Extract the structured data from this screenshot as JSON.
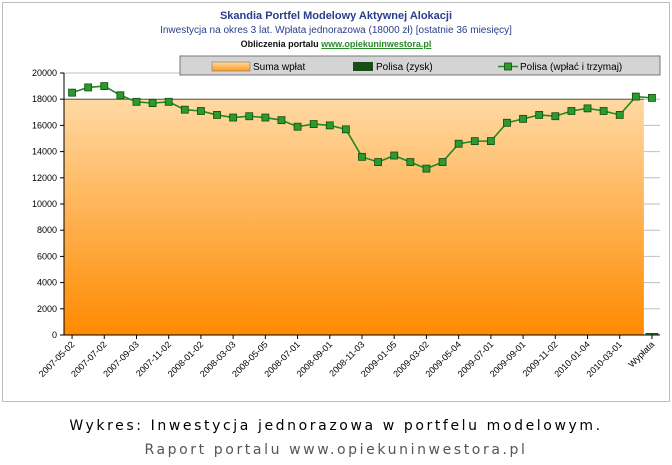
{
  "header": {
    "title": "Skandia Portfel Modelowy Aktywnej Alokacji",
    "subtitle": "Inwestycja na okres 3 lat. Wpłata jednorazowa (18000 zł) [ostatnie 36 miesięcy]",
    "credit_prefix": "Obliczenia portalu",
    "credit_link": "www.opiekuninwestora.pl"
  },
  "footer": {
    "caption": "Wykres: Inwestycja jednorazowa w portfelu modelowym.",
    "source": "Raport portalu www.opiekuninwestora.pl"
  },
  "colors": {
    "line": "#1f8a1f",
    "marker": "#2e9a2e",
    "area_top": "#ffd9a3",
    "area_bottom": "#ff8a00",
    "zysk_bar": "#1a4d1a",
    "legend_bg": "#d4d4d4"
  },
  "chart_data": {
    "type": "line",
    "title": "Skandia Portfel Modelowy Aktywnej Alokacji",
    "ylim": [
      0,
      20000
    ],
    "yticks": [
      0,
      2000,
      4000,
      6000,
      8000,
      10000,
      12000,
      14000,
      16000,
      18000,
      20000
    ],
    "grid": true,
    "legend_placement": "top",
    "legend": [
      "Suma wpłat",
      "Polisa (zysk)",
      "Polisa (wpłać i trzymaj)"
    ],
    "categories": [
      "2007-05-02",
      "2007-06-01",
      "2007-07-02",
      "2007-08-01",
      "2007-09-03",
      "2007-10-01",
      "2007-11-02",
      "2007-12-03",
      "2008-01-02",
      "2008-02-01",
      "2008-03-03",
      "2008-04-01",
      "2008-05-05",
      "2008-06-02",
      "2008-07-01",
      "2008-08-01",
      "2008-09-01",
      "2008-10-01",
      "2008-11-03",
      "2008-12-01",
      "2009-01-05",
      "2009-02-02",
      "2009-03-02",
      "2009-04-01",
      "2009-05-04",
      "2009-06-01",
      "2009-07-01",
      "2009-08-03",
      "2009-09-01",
      "2009-10-01",
      "2009-11-02",
      "2009-12-01",
      "2010-01-04",
      "2010-02-01",
      "2010-03-01",
      "2010-04-01",
      "Wypłata"
    ],
    "tick_labels": [
      "2007-05-02",
      "2007-07-02",
      "2007-09-03",
      "2007-11-02",
      "2008-01-02",
      "2008-03-03",
      "2008-05-05",
      "2008-07-01",
      "2008-09-01",
      "2008-11-03",
      "2009-01-05",
      "2009-03-02",
      "2009-05-04",
      "2009-07-01",
      "2009-09-01",
      "2009-11-02",
      "2010-01-04",
      "2010-03-01",
      "Wypłata"
    ],
    "series": [
      {
        "name": "Suma wpłat",
        "type": "area",
        "values": [
          18000,
          18000,
          18000,
          18000,
          18000,
          18000,
          18000,
          18000,
          18000,
          18000,
          18000,
          18000,
          18000,
          18000,
          18000,
          18000,
          18000,
          18000,
          18000,
          18000,
          18000,
          18000,
          18000,
          18000,
          18000,
          18000,
          18000,
          18000,
          18000,
          18000,
          18000,
          18000,
          18000,
          18000,
          18000,
          18000,
          null
        ]
      },
      {
        "name": "Polisa (zysk)",
        "type": "bar",
        "values": [
          null,
          null,
          null,
          null,
          null,
          null,
          null,
          null,
          null,
          null,
          null,
          null,
          null,
          null,
          null,
          null,
          null,
          null,
          null,
          null,
          null,
          null,
          null,
          null,
          null,
          null,
          null,
          null,
          null,
          null,
          null,
          null,
          null,
          null,
          null,
          null,
          100
        ]
      },
      {
        "name": "Polisa (wpłać i trzymaj)",
        "type": "line",
        "values": [
          18500,
          18900,
          19000,
          18300,
          17800,
          17700,
          17800,
          17200,
          17100,
          16800,
          16600,
          16700,
          16600,
          16400,
          15900,
          16100,
          16000,
          15700,
          13600,
          13200,
          13700,
          13200,
          12700,
          13200,
          14600,
          14800,
          14800,
          16200,
          16500,
          16800,
          16700,
          17100,
          17300,
          17100,
          16800,
          18200,
          18100
        ]
      }
    ]
  }
}
